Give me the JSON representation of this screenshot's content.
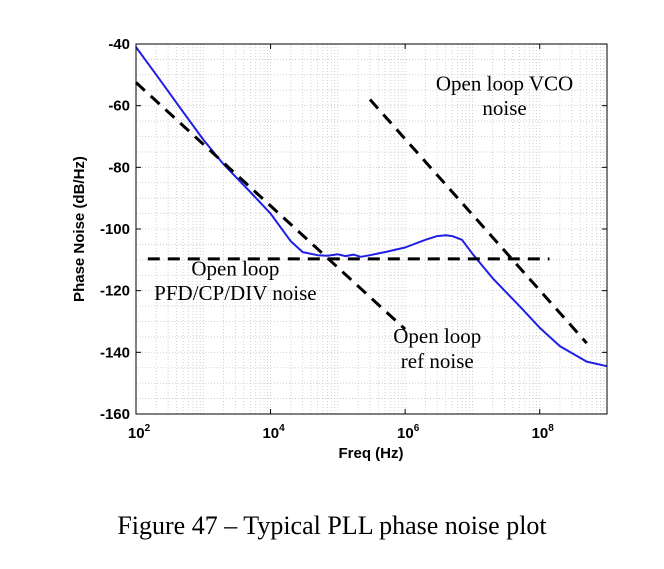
{
  "caption": "Figure 47 – Typical PLL phase noise plot",
  "chart_data": {
    "type": "line",
    "xlabel": "Freq (Hz)",
    "ylabel": "Phase Noise (dB/Hz)",
    "x_scale": "log",
    "xlim": [
      100,
      1000000000
    ],
    "ylim": [
      -160,
      -40
    ],
    "x_ticks": [
      {
        "value": 100,
        "base": "10",
        "exp": "2"
      },
      {
        "value": 10000,
        "base": "10",
        "exp": "4"
      },
      {
        "value": 1000000,
        "base": "10",
        "exp": "6"
      },
      {
        "value": 100000000,
        "base": "10",
        "exp": "8"
      }
    ],
    "y_ticks": [
      -40,
      -60,
      -80,
      -100,
      -120,
      -140,
      -160
    ],
    "grid": "dotted",
    "series": [
      {
        "style": "solid",
        "color": "#1f1fe6",
        "points": [
          [
            100,
            -41
          ],
          [
            200,
            -50
          ],
          [
            500,
            -62
          ],
          [
            1000,
            -71
          ],
          [
            2000,
            -79
          ],
          [
            5000,
            -88
          ],
          [
            10000,
            -95
          ],
          [
            20000,
            -104
          ],
          [
            30000,
            -107.5
          ],
          [
            50000,
            -108.5
          ],
          [
            70000,
            -108.7
          ],
          [
            100000,
            -108.2
          ],
          [
            130000,
            -108.8
          ],
          [
            170000,
            -108.3
          ],
          [
            220000,
            -109
          ],
          [
            300000,
            -108.5
          ],
          [
            500000,
            -107.5
          ],
          [
            1000000,
            -106
          ],
          [
            2000000,
            -103.5
          ],
          [
            3000000,
            -102.3
          ],
          [
            4000000,
            -102
          ],
          [
            5000000,
            -102.3
          ],
          [
            7000000,
            -103.5
          ],
          [
            10000000,
            -108
          ],
          [
            20000000,
            -116
          ],
          [
            50000000,
            -125
          ],
          [
            100000000,
            -132
          ],
          [
            200000000,
            -138
          ],
          [
            500000000,
            -143
          ],
          [
            1000000000,
            -144.5
          ]
        ]
      },
      {
        "style": "dashed",
        "color": "#000000",
        "points": [
          [
            100,
            -52.5
          ],
          [
            1000000,
            -132.5
          ]
        ]
      },
      {
        "style": "dashed",
        "color": "#000000",
        "points": [
          [
            300000,
            -58
          ],
          [
            500000000,
            -137
          ]
        ]
      },
      {
        "style": "dashed",
        "color": "#000000",
        "points": [
          [
            150,
            -109.7
          ],
          [
            140000000,
            -109.7
          ]
        ]
      }
    ],
    "annotations": [
      {
        "text": "Open loop VCO",
        "x": 30000000,
        "y": -55,
        "anchor": "middle"
      },
      {
        "text": "noise",
        "x": 30000000,
        "y": -63,
        "anchor": "middle"
      },
      {
        "text": "Open loop",
        "x": 3000,
        "y": -115,
        "anchor": "middle"
      },
      {
        "text": "PFD/CP/DIV noise",
        "x": 3000,
        "y": -123,
        "anchor": "middle"
      },
      {
        "text": "Open loop",
        "x": 3000000,
        "y": -137,
        "anchor": "middle"
      },
      {
        "text": "ref noise",
        "x": 3000000,
        "y": -145,
        "anchor": "middle"
      }
    ]
  }
}
